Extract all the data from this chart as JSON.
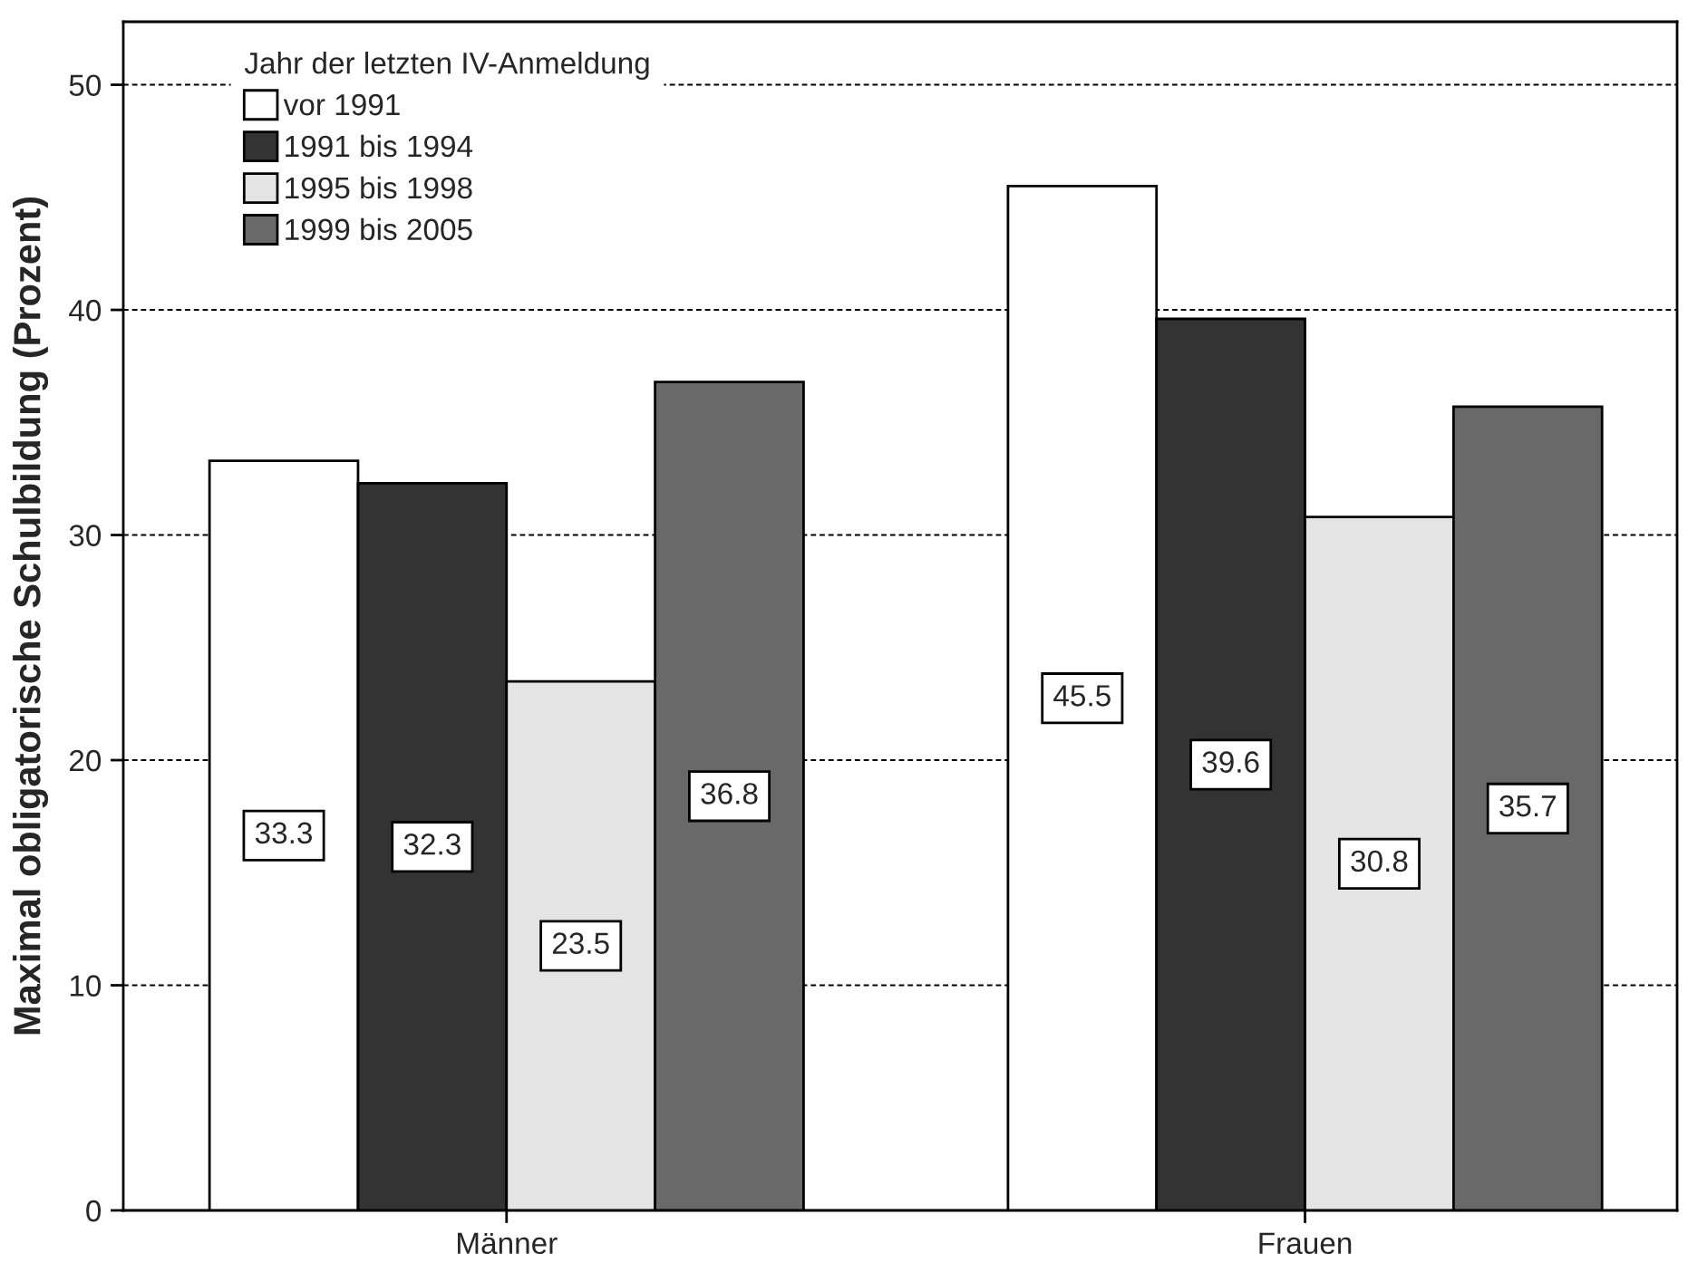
{
  "chart_data": {
    "type": "bar",
    "categories": [
      "Männer",
      "Frauen"
    ],
    "ylabel": "Maximal obligatorische Schulbildung (Prozent)",
    "legend_title": "Jahr der letzten IV-Anmeldung",
    "series": [
      {
        "name": "vor 1991",
        "color": "#ffffff",
        "values": [
          33.3,
          45.5
        ]
      },
      {
        "name": "1991 bis 1994",
        "color": "#333333",
        "values": [
          32.3,
          39.6
        ]
      },
      {
        "name": "1995 bis 1998",
        "color": "#e4e4e4",
        "values": [
          23.5,
          30.8
        ]
      },
      {
        "name": "1999 bis 2005",
        "color": "#696969",
        "values": [
          36.8,
          35.7
        ]
      }
    ],
    "ylim": [
      0,
      52.8
    ],
    "yticks": [
      0,
      10,
      20,
      30,
      40,
      50
    ],
    "grid": "y",
    "legend": "top left",
    "data_labels": true
  }
}
